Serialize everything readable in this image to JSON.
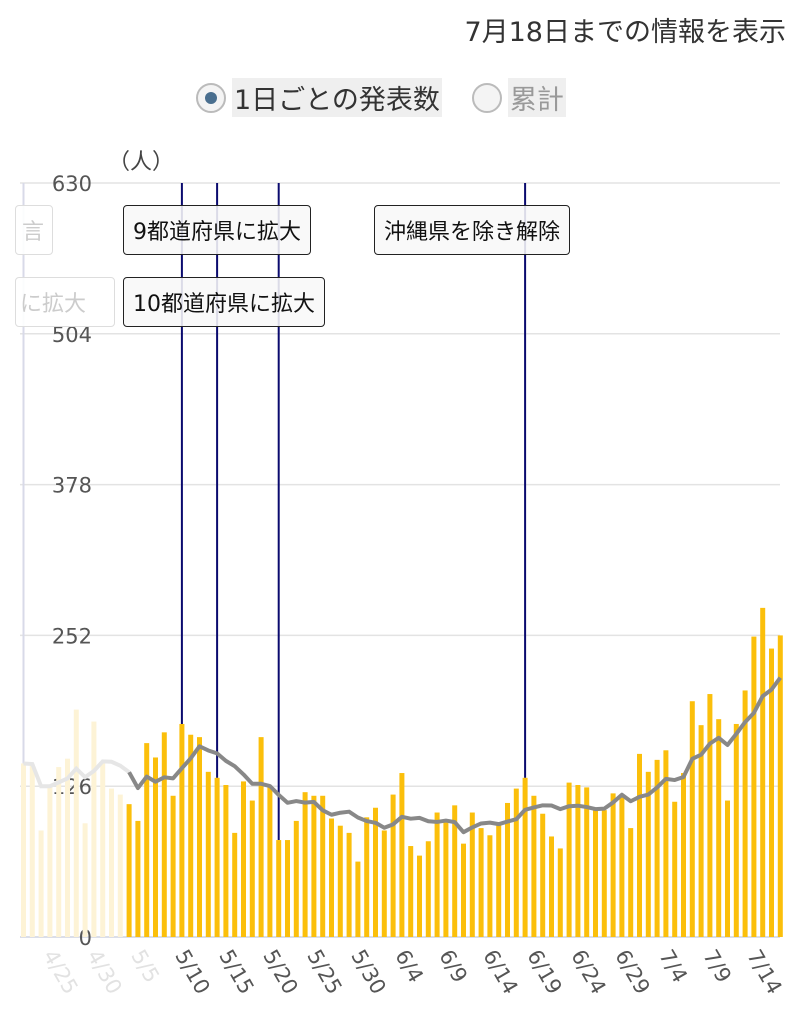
{
  "header": {
    "info": "7月18日までの情報を表示"
  },
  "toggle": {
    "options": [
      {
        "label": "1日ごとの発表数",
        "selected": true
      },
      {
        "label": "累計",
        "selected": false
      }
    ]
  },
  "colors": {
    "bar": "#fbbf0b",
    "bar_faded": "#fdf3d6",
    "line": "#888888",
    "event_line": "#0a0a6e"
  },
  "chart_data": {
    "type": "bar",
    "ylabel": "（人）",
    "ylim": [
      0,
      630
    ],
    "yticks": [
      "0",
      "126",
      "252",
      "378",
      "504",
      "630"
    ],
    "yticks_values": [
      0,
      126,
      252,
      378,
      504,
      630
    ],
    "grid": true,
    "start_date": "4/23",
    "faded_values": [
      145,
      144,
      89,
      126,
      142,
      149,
      190,
      95,
      180,
      145,
      124,
      119
    ],
    "values": [
      111,
      97,
      162,
      150,
      171,
      118,
      178,
      169,
      167,
      138,
      133,
      127,
      87,
      130,
      114,
      167,
      125,
      81,
      81,
      97,
      121,
      118,
      118,
      99,
      93,
      87,
      63,
      100,
      108,
      89,
      119,
      137,
      76,
      68,
      80,
      104,
      97,
      110,
      78,
      104,
      91,
      85,
      95,
      112,
      124,
      133,
      118,
      103,
      84,
      74,
      129,
      127,
      125,
      106,
      106,
      120,
      119,
      91,
      153,
      138,
      148,
      156,
      113,
      137,
      197,
      177,
      203,
      182,
      114,
      178,
      206,
      251,
      275,
      241,
      252
    ],
    "moving_average": "7-day",
    "xtick_labels": [
      {
        "index": 2,
        "label": "4/25",
        "faded": true
      },
      {
        "index": 7,
        "label": "4/30",
        "faded": true
      },
      {
        "index": 12,
        "label": "5/5",
        "faded": true
      },
      {
        "index": 17,
        "label": "5/10"
      },
      {
        "index": 22,
        "label": "5/15"
      },
      {
        "index": 27,
        "label": "5/20"
      },
      {
        "index": 32,
        "label": "5/25"
      },
      {
        "index": 37,
        "label": "5/30"
      },
      {
        "index": 42,
        "label": "6/4"
      },
      {
        "index": 47,
        "label": "6/9"
      },
      {
        "index": 52,
        "label": "6/14"
      },
      {
        "index": 57,
        "label": "6/19"
      },
      {
        "index": 62,
        "label": "6/24"
      },
      {
        "index": 67,
        "label": "6/29"
      },
      {
        "index": 72,
        "label": "7/4"
      },
      {
        "index": 77,
        "label": "7/9"
      },
      {
        "index": 82,
        "label": "7/14"
      }
    ],
    "events": [
      {
        "index": 0,
        "faded": true
      },
      {
        "index": 18,
        "label": "9都道府県に拡大"
      },
      {
        "index": 22,
        "label": "10都道府県に拡大"
      },
      {
        "index": 29
      },
      {
        "index": 57,
        "label": "沖縄県を除き解除"
      }
    ],
    "faded_annotations": [
      "言",
      "に拡大"
    ]
  }
}
